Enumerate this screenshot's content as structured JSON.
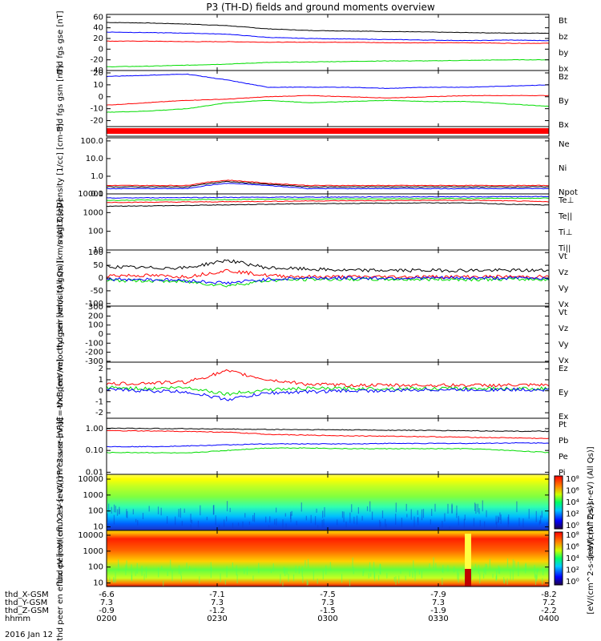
{
  "title": "P3 (TH-D) fields and ground moments overview",
  "colors": {
    "black": "#000000",
    "red": "#ff0000",
    "green": "#00dd00",
    "blue": "#0000ff"
  },
  "x_axis": {
    "tick_labels": [
      "0200",
      "0230",
      "0300",
      "0330",
      "0400"
    ],
    "rows": [
      {
        "label": "thd_X-GSM",
        "values": [
          "-6.6",
          "-7.1",
          "-7.5",
          "-7.9",
          "-8.2"
        ]
      },
      {
        "label": "thd_Y-GSM",
        "values": [
          "7.3",
          "7.3",
          "7.3",
          "7.3",
          "7.2"
        ]
      },
      {
        "label": "thd_Z-GSM",
        "values": [
          "-0.9",
          "-1.2",
          "-1.5",
          "-1.9",
          "-2.2"
        ]
      },
      {
        "label": "hhmm",
        "values": [
          "0200",
          "0230",
          "0300",
          "0330",
          "0400"
        ]
      }
    ],
    "date": "2016 Jan 12"
  },
  "chart_data": [
    {
      "type": "line",
      "ylabel": "thd fgs gse [nT]",
      "ylim": [
        -40,
        65
      ],
      "ticks": [
        "60",
        "40",
        "20",
        "0",
        "-20",
        "-40"
      ],
      "series": [
        {
          "name": "Bt",
          "color": "black",
          "values": [
            50,
            49,
            47,
            44,
            38,
            35,
            34,
            33,
            32,
            31,
            30,
            30
          ]
        },
        {
          "name": "bz",
          "color": "red",
          "values": [
            15,
            15,
            14,
            14,
            13,
            13,
            13,
            12,
            12,
            12,
            11,
            11
          ]
        },
        {
          "name": "by",
          "color": "green",
          "values": [
            -33,
            -32,
            -30,
            -28,
            -25,
            -24,
            -23,
            -22,
            -22,
            -21,
            -20,
            -20
          ]
        },
        {
          "name": "bx",
          "color": "blue",
          "values": [
            32,
            31,
            30,
            28,
            22,
            20,
            19,
            18,
            17,
            16,
            17,
            16
          ]
        }
      ]
    },
    {
      "type": "line",
      "ylabel": "thd fgs gsm [nT]",
      "ylim": [
        -25,
        22
      ],
      "ticks": [
        "20",
        "10",
        "0",
        "-10",
        "-20"
      ],
      "series": [
        {
          "name": "Bz",
          "color": "red",
          "values": [
            -7,
            -5,
            -3,
            -2,
            0,
            1,
            0,
            -1,
            0,
            1,
            1,
            1
          ]
        },
        {
          "name": "By",
          "color": "green",
          "values": [
            -13,
            -12,
            -10,
            -5,
            -3,
            -5,
            -4,
            -3,
            -4,
            -4,
            -6,
            -8
          ]
        },
        {
          "name": "Bx",
          "color": "blue",
          "values": [
            17,
            18,
            19,
            14,
            8,
            8,
            8,
            7,
            8,
            8,
            9,
            10
          ]
        }
      ]
    },
    {
      "type": "line",
      "ylabel": "Density [1/cc] [cm-3]",
      "log": true,
      "ylim": [
        0.1,
        150
      ],
      "ticks": [
        "100.0",
        "10.0",
        "1.0",
        "0.1"
      ],
      "series": [
        {
          "name": "Ne",
          "color": "red",
          "values": [
            0.3,
            0.3,
            0.3,
            0.6,
            0.4,
            0.3,
            0.3,
            0.3,
            0.3,
            0.3,
            0.3,
            0.3
          ]
        },
        {
          "name": "Ni",
          "color": "black",
          "values": [
            0.25,
            0.25,
            0.25,
            0.5,
            0.35,
            0.25,
            0.25,
            0.25,
            0.25,
            0.25,
            0.25,
            0.25
          ]
        },
        {
          "name": "Npot",
          "color": "blue",
          "values": [
            0.2,
            0.2,
            0.2,
            0.4,
            0.3,
            0.2,
            0.2,
            0.2,
            0.2,
            0.2,
            0.2,
            0.2
          ]
        }
      ]
    },
    {
      "type": "line",
      "ylabel": "magt3 [eV]",
      "log": true,
      "ylim": [
        10,
        10000
      ],
      "ticks": [
        "10000",
        "1000",
        "100",
        "10"
      ],
      "series": [
        {
          "name": "Te⊥",
          "color": "red",
          "values": [
            3500,
            3600,
            3700,
            3800,
            4000,
            4200,
            4300,
            4400,
            4500,
            4600,
            4200,
            3800
          ]
        },
        {
          "name": "Te||",
          "color": "black",
          "values": [
            2200,
            2300,
            2400,
            2600,
            2800,
            3000,
            3100,
            3200,
            3300,
            3300,
            2800,
            2500
          ]
        },
        {
          "name": "Ti⊥",
          "color": "blue",
          "values": [
            6000,
            6200,
            6400,
            6500,
            6600,
            6700,
            6800,
            6900,
            7000,
            7000,
            7100,
            7200
          ]
        },
        {
          "name": "Ti||",
          "color": "green",
          "values": [
            4500,
            4700,
            4900,
            5000,
            5200,
            5300,
            5400,
            5500,
            5600,
            5700,
            5800,
            5900
          ]
        }
      ]
    },
    {
      "type": "line",
      "ylabel": "thd peir velocity gsm [km/s (All Qs)]",
      "ylim": [
        -110,
        110
      ],
      "ticks": [
        "100",
        "50",
        "0",
        "-50",
        "-100"
      ],
      "series": [
        {
          "name": "Vt",
          "color": "black",
          "values": [
            45,
            40,
            40,
            70,
            40,
            35,
            30,
            30,
            30,
            30,
            30,
            30
          ]
        },
        {
          "name": "Vz",
          "color": "red",
          "values": [
            10,
            10,
            5,
            30,
            10,
            5,
            5,
            5,
            5,
            5,
            5,
            5
          ]
        },
        {
          "name": "Vy",
          "color": "green",
          "values": [
            -10,
            -10,
            -15,
            -30,
            -10,
            -5,
            -5,
            -5,
            -5,
            -5,
            -5,
            -5
          ]
        },
        {
          "name": "Vx",
          "color": "blue",
          "values": [
            -5,
            -5,
            -10,
            -20,
            -5,
            0,
            0,
            0,
            0,
            0,
            0,
            0
          ]
        }
      ]
    },
    {
      "type": "line",
      "ylabel": "thd peer velocity gsm [km/s (All Qs)]",
      "ylim": [
        -310,
        310
      ],
      "ticks": [
        "300",
        "200",
        "100",
        "0",
        "-100",
        "-200",
        "-300"
      ],
      "series": [
        {
          "name": "Vt",
          "color": "black",
          "values": []
        },
        {
          "name": "Vz",
          "color": "red",
          "values": []
        },
        {
          "name": "Vy",
          "color": "green",
          "values": []
        },
        {
          "name": "Vx",
          "color": "blue",
          "values": []
        }
      ]
    },
    {
      "type": "line",
      "ylabel": "E=-VxB [mV/m]",
      "ylim": [
        -2.5,
        2.6
      ],
      "ticks": [
        "2",
        "1",
        "0",
        "-1",
        "-2"
      ],
      "series": [
        {
          "name": "Ez",
          "color": "red",
          "values": [
            0.6,
            0.7,
            0.8,
            1.8,
            1.0,
            0.6,
            0.5,
            0.5,
            0.5,
            0.5,
            0.5,
            0.5
          ]
        },
        {
          "name": "Ey",
          "color": "green",
          "values": [
            0.3,
            0.2,
            0.3,
            -0.3,
            0.1,
            0.2,
            0.2,
            0.2,
            0.2,
            0.2,
            0.2,
            0.2
          ]
        },
        {
          "name": "Ex",
          "color": "blue",
          "values": [
            0.1,
            0.0,
            -0.1,
            -0.8,
            -0.2,
            -0.1,
            0.0,
            0.0,
            0.1,
            0.1,
            0.1,
            0.1
          ]
        }
      ]
    },
    {
      "type": "line",
      "ylabel": "Pressure [nPa]",
      "log": true,
      "ylim": [
        0.008,
        3
      ],
      "ticks": [
        "1.00",
        "0.10",
        "0.01"
      ],
      "series": [
        {
          "name": "Pt",
          "color": "black",
          "values": [
            1.05,
            1.02,
            1.0,
            0.95,
            0.92,
            0.9,
            0.88,
            0.85,
            0.83,
            0.8,
            0.77,
            0.75
          ]
        },
        {
          "name": "Pb",
          "color": "red",
          "values": [
            0.8,
            0.78,
            0.75,
            0.68,
            0.55,
            0.5,
            0.47,
            0.45,
            0.43,
            0.4,
            0.38,
            0.35
          ]
        },
        {
          "name": "Pe",
          "color": "green",
          "values": [
            0.08,
            0.08,
            0.075,
            0.1,
            0.13,
            0.13,
            0.12,
            0.12,
            0.12,
            0.12,
            0.1,
            0.08
          ]
        },
        {
          "name": "Pi",
          "color": "blue",
          "values": [
            0.15,
            0.15,
            0.16,
            0.18,
            0.2,
            0.2,
            0.2,
            0.21,
            0.21,
            0.21,
            0.22,
            0.22
          ]
        }
      ]
    },
    {
      "type": "heatmap",
      "ylabel": "thd peir en eflux eV [eV/(cm^2-s-sr-eV)]",
      "log": true,
      "ylim": [
        6,
        20000
      ],
      "ticks": [
        "10000",
        "1000",
        "100",
        "10"
      ],
      "colorbar": {
        "label": "[eV/(cm^2-s-sr-eV) (All Qs)]",
        "ticks": [
          "10⁸",
          "10⁶",
          "10⁴",
          "10²",
          "10⁰"
        ]
      }
    },
    {
      "type": "heatmap",
      "ylabel": "thd peer en eflux eV [eV/(cm^2-s-sr-eV)]",
      "log": true,
      "ylim": [
        6,
        20000
      ],
      "ticks": [
        "10000",
        "1000",
        "100",
        "10"
      ],
      "colorbar": {
        "label": "[eV/(cm^2-s-sr-eV) (All Qs)]",
        "ticks": [
          "10⁸",
          "10⁶",
          "10⁴",
          "10²",
          "10⁰"
        ]
      }
    }
  ]
}
